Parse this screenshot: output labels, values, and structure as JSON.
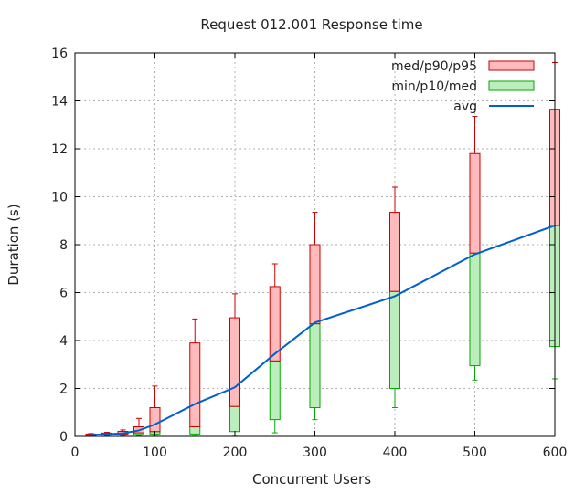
{
  "chart_data": {
    "type": "box",
    "title": "Request 012.001 Response time",
    "xlabel": "Concurrent Users",
    "ylabel": "Duration (s)",
    "xlim": [
      0,
      600
    ],
    "ylim": [
      0,
      16
    ],
    "x_ticks": [
      0,
      100,
      200,
      300,
      400,
      500,
      600
    ],
    "y_ticks": [
      0,
      2,
      4,
      6,
      8,
      10,
      12,
      14,
      16
    ],
    "grid": true,
    "legend_position": "top-right",
    "legend": [
      {
        "label": "med/p90/p95",
        "color": "#ffbbbb",
        "stroke": "#cc0000"
      },
      {
        "label": "min/p10/med",
        "color": "#bbeebb",
        "stroke": "#00aa00"
      },
      {
        "label": "avg",
        "color": "#0060d0"
      }
    ],
    "boxes": [
      {
        "x": 20,
        "min": 0.01,
        "p10": 0.03,
        "med": 0.06,
        "p90": 0.1,
        "p95": 0.12
      },
      {
        "x": 40,
        "min": 0.02,
        "p10": 0.05,
        "med": 0.08,
        "p90": 0.14,
        "p95": 0.17
      },
      {
        "x": 60,
        "min": 0.03,
        "p10": 0.06,
        "med": 0.1,
        "p90": 0.21,
        "p95": 0.27
      },
      {
        "x": 80,
        "min": 0.04,
        "p10": 0.08,
        "med": 0.15,
        "p90": 0.4,
        "p95": 0.75
      },
      {
        "x": 100,
        "min": 0.05,
        "p10": 0.1,
        "med": 0.2,
        "p90": 1.2,
        "p95": 2.1
      },
      {
        "x": 150,
        "min": 0.05,
        "p10": 0.1,
        "med": 0.4,
        "p90": 3.9,
        "p95": 4.9
      },
      {
        "x": 200,
        "min": 0.05,
        "p10": 0.2,
        "med": 1.25,
        "p90": 4.95,
        "p95": 5.95
      },
      {
        "x": 250,
        "min": 0.15,
        "p10": 0.7,
        "med": 3.15,
        "p90": 6.25,
        "p95": 7.2
      },
      {
        "x": 300,
        "min": 0.7,
        "p10": 1.2,
        "med": 4.7,
        "p90": 8.0,
        "p95": 9.35
      },
      {
        "x": 400,
        "min": 1.2,
        "p10": 2.0,
        "med": 6.05,
        "p90": 9.35,
        "p95": 10.4
      },
      {
        "x": 500,
        "min": 2.35,
        "p10": 2.95,
        "med": 7.65,
        "p90": 11.8,
        "p95": 13.35
      },
      {
        "x": 600,
        "min": 2.4,
        "p10": 3.75,
        "med": 8.8,
        "p90": 13.65,
        "p95": 15.6
      }
    ],
    "avg": {
      "x": [
        20,
        40,
        60,
        80,
        100,
        150,
        200,
        250,
        300,
        400,
        500,
        600
      ],
      "y": [
        0.06,
        0.09,
        0.13,
        0.25,
        0.5,
        1.35,
        2.05,
        3.45,
        4.75,
        5.85,
        7.6,
        8.8
      ]
    }
  }
}
